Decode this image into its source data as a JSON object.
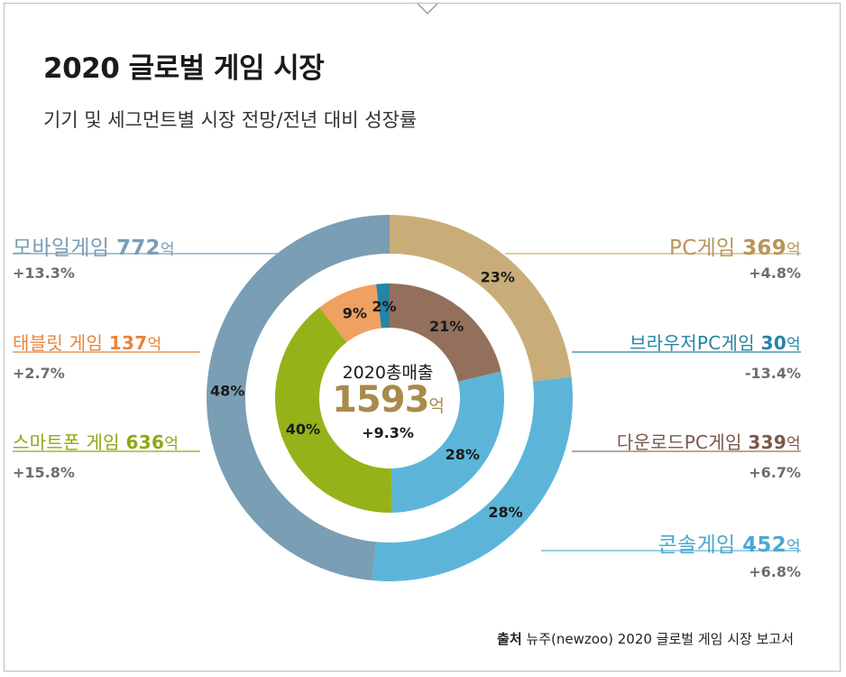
{
  "title": "2020 글로벌 게임 시장",
  "subtitle": "기기 및 세그먼트별 시장 전망/전년 대비 성장률",
  "center": {
    "label": "2020총매출",
    "value": "1593",
    "unit": "억",
    "growth": "+9.3%"
  },
  "source": {
    "label": "출처",
    "text": "뉴주(newzoo) 2020 글로벌 게임 시장 보고서"
  },
  "colors": {
    "mobile": "#7a9eb4",
    "pc": "#c9ad79",
    "console": "#5cb5d9",
    "tablet": "#f0a060",
    "smartphone": "#95b318",
    "browser_pc": "#2684a6",
    "download_pc": "#93705c"
  },
  "labels": {
    "mobile": {
      "name": "모바일게임",
      "value": "772",
      "unit": "억",
      "growth": "+13.3%"
    },
    "tablet": {
      "name": "태블릿 게임",
      "value": "137",
      "unit": "억",
      "growth": "+2.7%"
    },
    "smartphone": {
      "name": "스마트폰 게임",
      "value": "636",
      "unit": "억",
      "growth": "+15.8%"
    },
    "pc": {
      "name": "PC게임",
      "value": "369",
      "unit": "억",
      "growth": "+4.8%"
    },
    "browser_pc": {
      "name": "브라우저PC게임",
      "value": "30",
      "unit": "억",
      "growth": "-13.4%"
    },
    "download_pc": {
      "name": "다운로드PC게임",
      "value": "339",
      "unit": "억",
      "growth": "+6.7%"
    },
    "console": {
      "name": "콘솔게임",
      "value": "452",
      "unit": "억",
      "growth": "+6.8%"
    }
  },
  "chart_data": {
    "type": "pie",
    "title": "2020 글로벌 게임 시장",
    "subtitle": "기기 및 세그먼트별 시장 전망/전년 대비 성장률",
    "unit": "억 달러",
    "total": 1593,
    "total_growth": "+9.3%",
    "rings": [
      {
        "name": "outer",
        "series": [
          {
            "name": "PC게임",
            "value": 369,
            "percent": 23,
            "growth": "+4.8%",
            "color": "#c9ad79"
          },
          {
            "name": "콘솔게임",
            "value": 452,
            "percent": 28,
            "growth": "+6.8%",
            "color": "#5cb5d9"
          },
          {
            "name": "모바일게임",
            "value": 772,
            "percent": 48,
            "growth": "+13.3%",
            "color": "#7a9eb4"
          }
        ]
      },
      {
        "name": "inner",
        "series": [
          {
            "name": "다운로드PC게임",
            "value": 339,
            "percent": 21,
            "growth": "+6.7%",
            "color": "#93705c"
          },
          {
            "name": "콘솔게임",
            "value": 452,
            "percent": 28,
            "growth": "+6.8%",
            "color": "#5cb5d9"
          },
          {
            "name": "스마트폰 게임",
            "value": 636,
            "percent": 40,
            "growth": "+15.8%",
            "color": "#95b318"
          },
          {
            "name": "태블릿 게임",
            "value": 137,
            "percent": 9,
            "growth": "+2.7%",
            "color": "#f0a060"
          },
          {
            "name": "브라우저PC게임",
            "value": 30,
            "percent": 2,
            "growth": "-13.4%",
            "color": "#2684a6"
          }
        ]
      }
    ]
  }
}
